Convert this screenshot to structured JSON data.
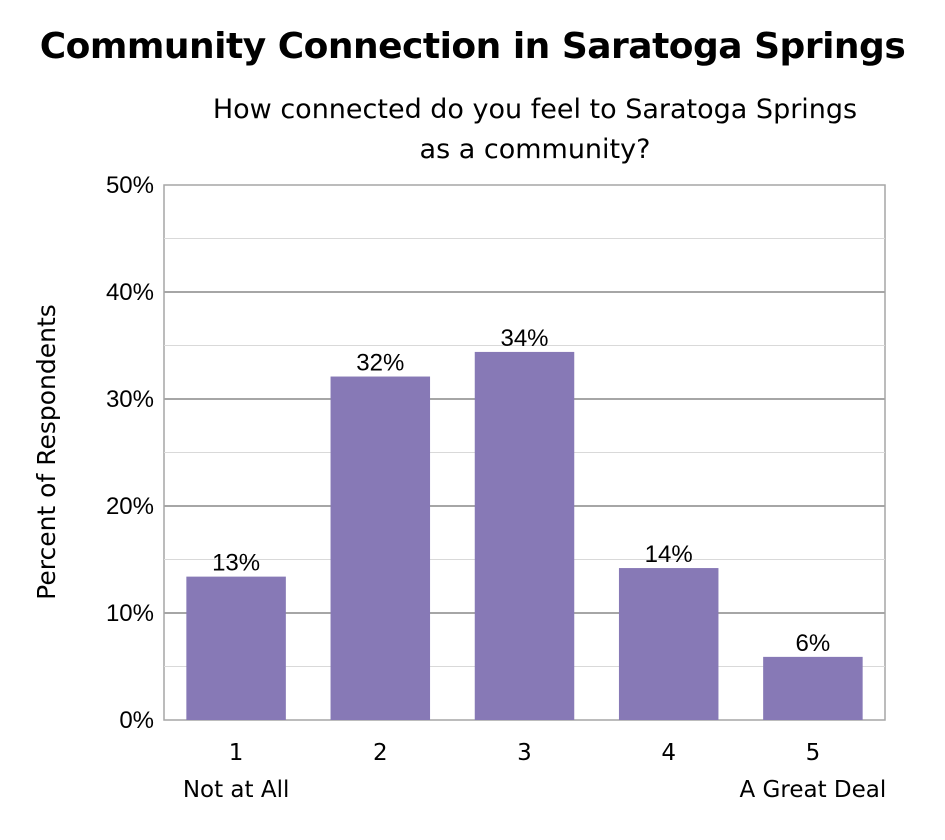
{
  "chart_data": {
    "type": "bar",
    "title": "Community Connection in Saratoga Springs",
    "subtitle_lines": [
      "How connected do you feel to Saratoga Springs",
      "as a community?"
    ],
    "ylabel": "Percent of Respondents",
    "xlabel": "",
    "categories": [
      "1",
      "2",
      "3",
      "4",
      "5"
    ],
    "category_sublabels": [
      "Not at All",
      "",
      "",
      "",
      "A Great Deal"
    ],
    "values": [
      13.4,
      32.1,
      34.4,
      14.2,
      5.9
    ],
    "data_labels": [
      "13%",
      "32%",
      "34%",
      "14%",
      "6%"
    ],
    "ylim": [
      0,
      50
    ],
    "yticks": [
      0,
      10,
      20,
      30,
      40,
      50
    ],
    "ytick_labels": [
      "0%",
      "10%",
      "20%",
      "30%",
      "40%",
      "50%"
    ],
    "grid": true,
    "bar_color": "#8779b6",
    "grid_color": "#a6a6a6",
    "axis_color": "#a6a6a6"
  }
}
